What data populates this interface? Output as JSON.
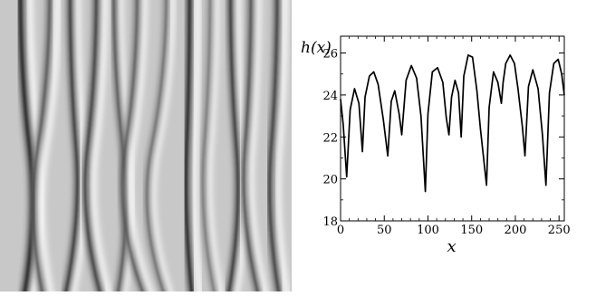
{
  "chart_data": [
    {
      "type": "image",
      "description_of_content": "grayscale pattern of wavy vertical stripes (surface height field)",
      "colormap": "grayscale",
      "stripes": [
        {
          "top": 0.07,
          "mid": 0.1,
          "bottom": 0.08,
          "dark": 0.8,
          "w": 0.022
        },
        {
          "top": 0.17,
          "mid": 0.13,
          "bottom": 0.15,
          "dark": 0.6,
          "w": 0.02
        },
        {
          "top": 0.24,
          "mid": 0.26,
          "bottom": 0.22,
          "dark": 0.75,
          "w": 0.018
        },
        {
          "top": 0.33,
          "mid": 0.3,
          "bottom": 0.35,
          "dark": 0.7,
          "w": 0.02
        },
        {
          "top": 0.39,
          "mid": 0.42,
          "bottom": 0.4,
          "dark": 0.65,
          "w": 0.016
        },
        {
          "top": 0.47,
          "mid": 0.43,
          "bottom": 0.5,
          "dark": 0.6,
          "w": 0.018
        },
        {
          "top": 0.57,
          "mid": 0.52,
          "bottom": 0.57,
          "dark": 0.55,
          "w": 0.016
        },
        {
          "top": 0.65,
          "mid": 0.64,
          "bottom": 0.66,
          "dark": 0.8,
          "w": 0.02
        },
        {
          "top": 0.72,
          "mid": 0.7,
          "bottom": 0.74,
          "dark": 0.5,
          "w": 0.016
        },
        {
          "top": 0.79,
          "mid": 0.81,
          "bottom": 0.78,
          "dark": 0.75,
          "w": 0.018
        },
        {
          "top": 0.86,
          "mid": 0.84,
          "bottom": 0.89,
          "dark": 0.65,
          "w": 0.018
        },
        {
          "top": 0.95,
          "mid": 0.93,
          "bottom": 0.96,
          "dark": 0.7,
          "w": 0.02
        }
      ]
    },
    {
      "type": "line",
      "title": "",
      "xlabel": "x",
      "ylabel": "h(x)",
      "xlim": [
        0,
        256
      ],
      "ylim": [
        18,
        26.8
      ],
      "xticks": [
        0,
        50,
        100,
        150,
        200,
        250
      ],
      "yticks": [
        18,
        20,
        22,
        24,
        26
      ],
      "grid": false,
      "legend": "none",
      "line_color": "#000000",
      "x": [
        0,
        3,
        7,
        11,
        16,
        21,
        25,
        28,
        33,
        38,
        43,
        49,
        54,
        58,
        62,
        67,
        70,
        75,
        81,
        87,
        92,
        97,
        100,
        105,
        111,
        117,
        121,
        124,
        127,
        131,
        135,
        138,
        141,
        146,
        151,
        156,
        160,
        167,
        170,
        175,
        180,
        184,
        186,
        189,
        194,
        199,
        203,
        208,
        211,
        215,
        220,
        226,
        231,
        235,
        239,
        244,
        249,
        253,
        256
      ],
      "series": [
        {
          "values": [
            23.8,
            22.6,
            20.1,
            23.3,
            24.3,
            23.6,
            21.3,
            23.9,
            24.9,
            25.1,
            24.5,
            22.8,
            21.1,
            23.7,
            24.2,
            23.1,
            22.1,
            24.7,
            25.4,
            24.8,
            23.0,
            19.4,
            23.1,
            25.1,
            25.3,
            24.6,
            22.9,
            22.1,
            23.9,
            24.7,
            24.1,
            22.0,
            24.9,
            25.9,
            25.8,
            24.2,
            22.4,
            19.7,
            23.4,
            25.1,
            24.6,
            23.6,
            24.6,
            25.5,
            25.9,
            25.5,
            24.3,
            22.5,
            21.1,
            24.4,
            25.2,
            24.3,
            22.1,
            19.7,
            24.1,
            25.5,
            25.7,
            25.0,
            24.0
          ]
        }
      ]
    }
  ]
}
